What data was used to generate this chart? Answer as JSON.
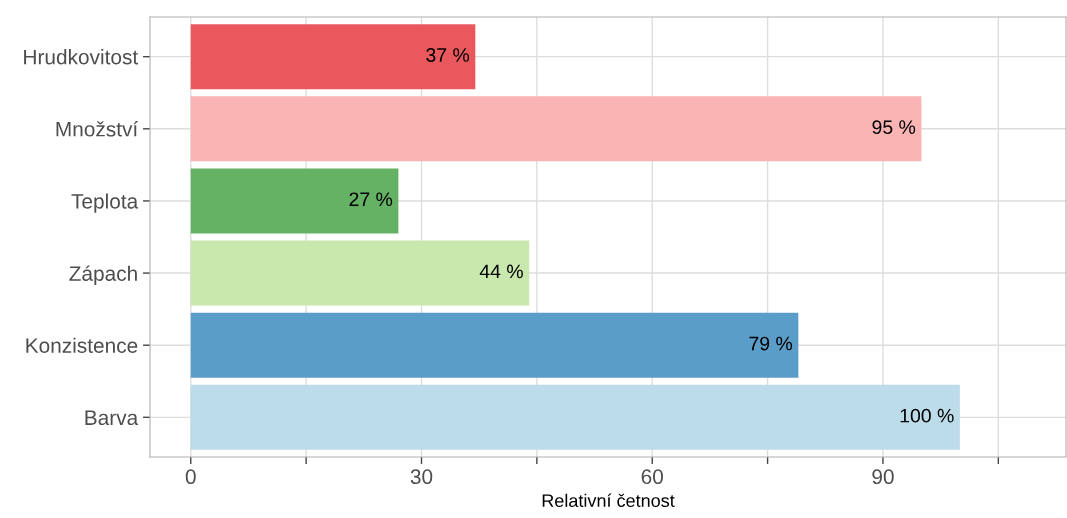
{
  "chart_data": {
    "type": "bar",
    "orientation": "horizontal",
    "xlabel": "Relativní četnost",
    "categories": [
      "Hrudkovitost",
      "Množství",
      "Teplota",
      "Zápach",
      "Konzistence",
      "Barva"
    ],
    "values": [
      37,
      95,
      27,
      44,
      79,
      100
    ],
    "value_labels": [
      "37 %",
      "95 %",
      "27 %",
      "44 %",
      "79 %",
      "100 %"
    ],
    "colors": [
      "#e8585c",
      "#fbb4b4",
      "#66b265",
      "#c9e8ae",
      "#5b9dc9",
      "#bddcea"
    ],
    "xlim": [
      -5.3,
      113.8
    ],
    "xticks": [
      0,
      {
        "value": 15,
        "label": null
      },
      30,
      {
        "value": 45,
        "label": null
      },
      60,
      {
        "value": 75,
        "label": null
      },
      90,
      {
        "value": 105,
        "label": null
      }
    ],
    "grid": true
  }
}
